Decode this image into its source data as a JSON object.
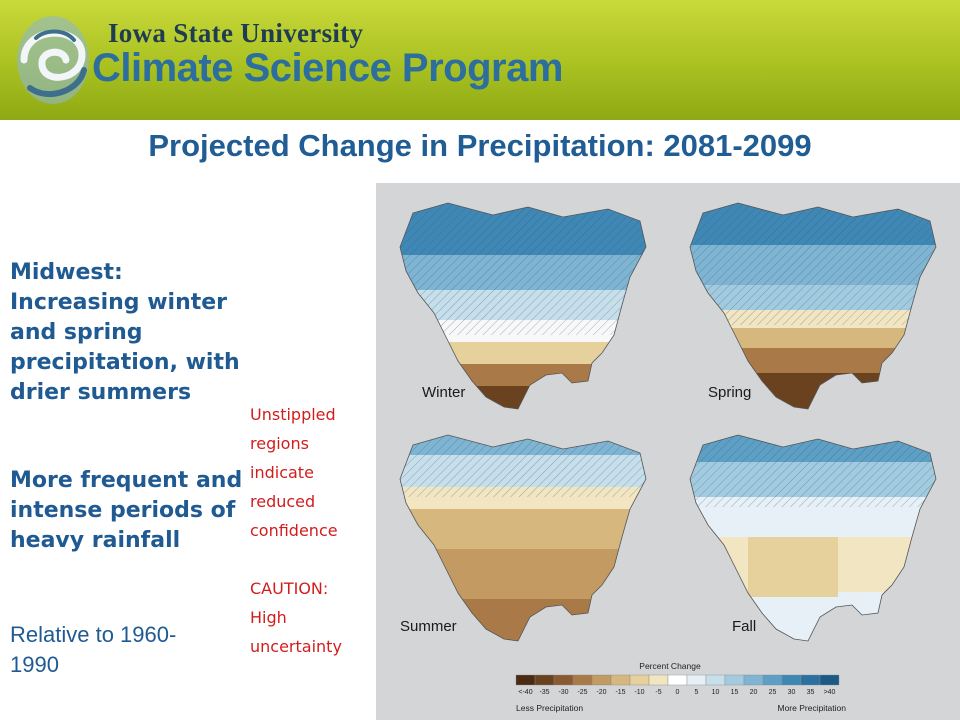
{
  "header": {
    "university": "Iowa State University",
    "program": "Climate Science Program"
  },
  "title": "Projected Change in Precipitation: 2081-2099",
  "bullets": [
    [
      "Midwest:",
      "Increasing winter",
      "and spring",
      "precipitation, with",
      "drier summers"
    ],
    [
      "More frequent and",
      "intense periods of",
      "heavy rainfall"
    ]
  ],
  "relative": [
    "Relative to 1960-",
    "1990"
  ],
  "notes": [
    [
      "Unstippled",
      "regions",
      "indicate",
      "reduced",
      "confidence"
    ],
    [
      "CAUTION:",
      "High",
      "uncertainty"
    ]
  ],
  "maps": {
    "seasons": [
      "Winter",
      "Spring",
      "Summer",
      "Fall"
    ],
    "legend": {
      "title": "Percent Change",
      "ticks": [
        "<-40",
        "-35",
        "-30",
        "-25",
        "-20",
        "-15",
        "-10",
        "-5",
        "0",
        "5",
        "10",
        "15",
        "20",
        "25",
        "30",
        "35",
        ">40"
      ],
      "left_label": "Less Precipitation",
      "right_label": "More Precipitation",
      "colors": [
        "#4a2a12",
        "#6b4220",
        "#8a5a30",
        "#a97a47",
        "#c29a62",
        "#d6b87e",
        "#e6d09c",
        "#f2e5c2",
        "#ffffff",
        "#e6f0f6",
        "#c6dfeb",
        "#a3cbe0",
        "#7fb5d3",
        "#5e9fc5",
        "#3f88b5",
        "#2a719f",
        "#1b5a86"
      ]
    }
  },
  "colors": {
    "banner": "#a9c121",
    "title_blue": "#1f5d94",
    "caution_red": "#d21d1d"
  }
}
